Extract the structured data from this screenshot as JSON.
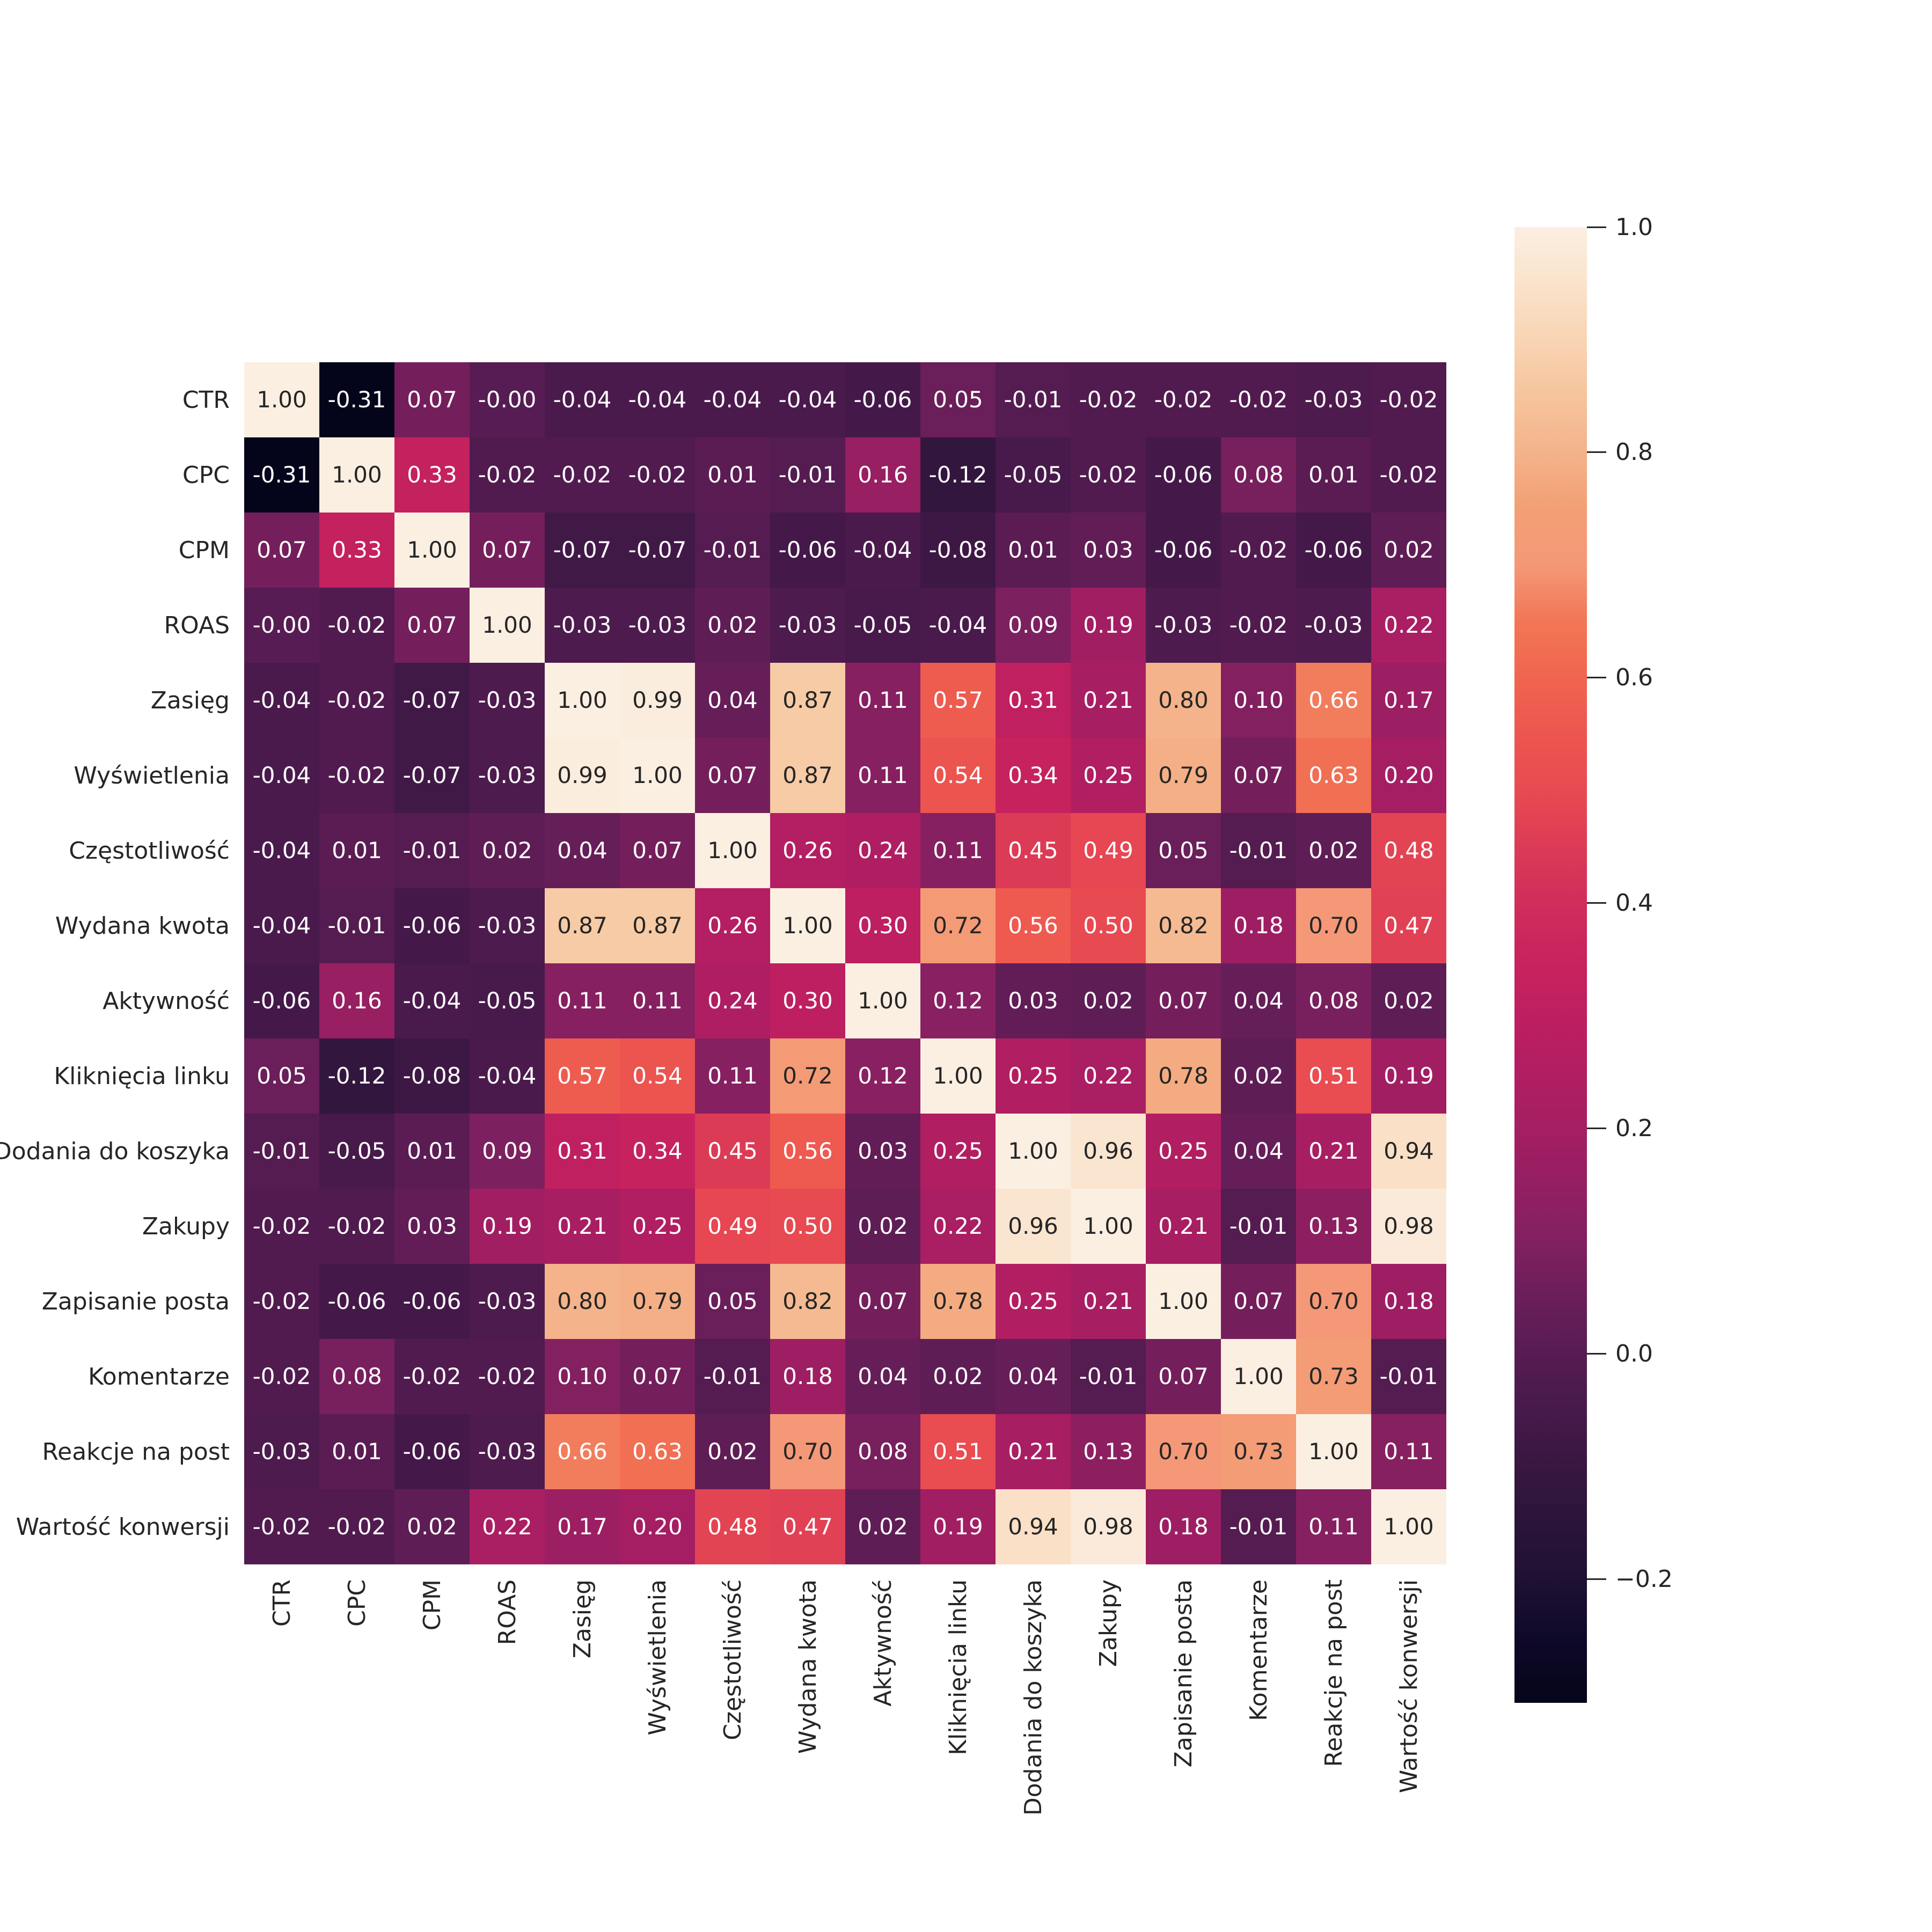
{
  "figure": {
    "background": "#ffffff"
  },
  "chart_data": {
    "type": "heatmap",
    "description": "Correlation matrix heatmap with Polish ad-metric labels, seaborn rocket colormap, annotated with two-decimal correlation values",
    "labels": [
      "CTR",
      "CPC",
      "CPM",
      "ROAS",
      "Zasięg",
      "Wyświetlenia",
      "Częstotliwość",
      "Wydana kwota",
      "Aktywność",
      "Kliknięcia linku",
      "Dodania do koszyka",
      "Zakupy",
      "Zapisanie posta",
      "Komentarze",
      "Reakcje na post",
      "Wartość konwersji"
    ],
    "matrix": [
      [
        "1.00",
        "-0.31",
        "0.07",
        "-0.00",
        "-0.04",
        "-0.04",
        "-0.04",
        "-0.04",
        "-0.06",
        "0.05",
        "-0.01",
        "-0.02",
        "-0.02",
        "-0.02",
        "-0.03",
        "-0.02"
      ],
      [
        "-0.31",
        "1.00",
        "0.33",
        "-0.02",
        "-0.02",
        "-0.02",
        "0.01",
        "-0.01",
        "0.16",
        "-0.12",
        "-0.05",
        "-0.02",
        "-0.06",
        "0.08",
        "0.01",
        "-0.02"
      ],
      [
        "0.07",
        "0.33",
        "1.00",
        "0.07",
        "-0.07",
        "-0.07",
        "-0.01",
        "-0.06",
        "-0.04",
        "-0.08",
        "0.01",
        "0.03",
        "-0.06",
        "-0.02",
        "-0.06",
        "0.02"
      ],
      [
        "-0.00",
        "-0.02",
        "0.07",
        "1.00",
        "-0.03",
        "-0.03",
        "0.02",
        "-0.03",
        "-0.05",
        "-0.04",
        "0.09",
        "0.19",
        "-0.03",
        "-0.02",
        "-0.03",
        "0.22"
      ],
      [
        "-0.04",
        "-0.02",
        "-0.07",
        "-0.03",
        "1.00",
        "0.99",
        "0.04",
        "0.87",
        "0.11",
        "0.57",
        "0.31",
        "0.21",
        "0.80",
        "0.10",
        "0.66",
        "0.17"
      ],
      [
        "-0.04",
        "-0.02",
        "-0.07",
        "-0.03",
        "0.99",
        "1.00",
        "0.07",
        "0.87",
        "0.11",
        "0.54",
        "0.34",
        "0.25",
        "0.79",
        "0.07",
        "0.63",
        "0.20"
      ],
      [
        "-0.04",
        "0.01",
        "-0.01",
        "0.02",
        "0.04",
        "0.07",
        "1.00",
        "0.26",
        "0.24",
        "0.11",
        "0.45",
        "0.49",
        "0.05",
        "-0.01",
        "0.02",
        "0.48"
      ],
      [
        "-0.04",
        "-0.01",
        "-0.06",
        "-0.03",
        "0.87",
        "0.87",
        "0.26",
        "1.00",
        "0.30",
        "0.72",
        "0.56",
        "0.50",
        "0.82",
        "0.18",
        "0.70",
        "0.47"
      ],
      [
        "-0.06",
        "0.16",
        "-0.04",
        "-0.05",
        "0.11",
        "0.11",
        "0.24",
        "0.30",
        "1.00",
        "0.12",
        "0.03",
        "0.02",
        "0.07",
        "0.04",
        "0.08",
        "0.02"
      ],
      [
        "0.05",
        "-0.12",
        "-0.08",
        "-0.04",
        "0.57",
        "0.54",
        "0.11",
        "0.72",
        "0.12",
        "1.00",
        "0.25",
        "0.22",
        "0.78",
        "0.02",
        "0.51",
        "0.19"
      ],
      [
        "-0.01",
        "-0.05",
        "0.01",
        "0.09",
        "0.31",
        "0.34",
        "0.45",
        "0.56",
        "0.03",
        "0.25",
        "1.00",
        "0.96",
        "0.25",
        "0.04",
        "0.21",
        "0.94"
      ],
      [
        "-0.02",
        "-0.02",
        "0.03",
        "0.19",
        "0.21",
        "0.25",
        "0.49",
        "0.50",
        "0.02",
        "0.22",
        "0.96",
        "1.00",
        "0.21",
        "-0.01",
        "0.13",
        "0.98"
      ],
      [
        "-0.02",
        "-0.06",
        "-0.06",
        "-0.03",
        "0.80",
        "0.79",
        "0.05",
        "0.82",
        "0.07",
        "0.78",
        "0.25",
        "0.21",
        "1.00",
        "0.07",
        "0.70",
        "0.18"
      ],
      [
        "-0.02",
        "0.08",
        "-0.02",
        "-0.02",
        "0.10",
        "0.07",
        "-0.01",
        "0.18",
        "0.04",
        "0.02",
        "0.04",
        "-0.01",
        "0.07",
        "1.00",
        "0.73",
        "-0.01"
      ],
      [
        "-0.03",
        "0.01",
        "-0.06",
        "-0.03",
        "0.66",
        "0.63",
        "0.02",
        "0.70",
        "0.08",
        "0.51",
        "0.21",
        "0.13",
        "0.70",
        "0.73",
        "1.00",
        "0.11"
      ],
      [
        "-0.02",
        "-0.02",
        "0.02",
        "0.22",
        "0.17",
        "0.20",
        "0.48",
        "0.47",
        "0.02",
        "0.19",
        "0.94",
        "0.98",
        "0.18",
        "-0.01",
        "0.11",
        "1.00"
      ]
    ],
    "vmin": -0.31,
    "vmax": 1.0,
    "colormap_name": "rocket",
    "colormap_anchors": [
      {
        "v": -0.31,
        "c": "#04051A"
      },
      {
        "v": -0.25,
        "c": "#10092A"
      },
      {
        "v": -0.2,
        "c": "#1F1133"
      },
      {
        "v": -0.15,
        "c": "#2B143A"
      },
      {
        "v": -0.1,
        "c": "#381740"
      },
      {
        "v": -0.05,
        "c": "#471A4B"
      },
      {
        "v": 0.0,
        "c": "#571C53"
      },
      {
        "v": 0.05,
        "c": "#6A1E5A"
      },
      {
        "v": 0.1,
        "c": "#822060"
      },
      {
        "v": 0.15,
        "c": "#941F62"
      },
      {
        "v": 0.2,
        "c": "#A51E63"
      },
      {
        "v": 0.25,
        "c": "#B21E62"
      },
      {
        "v": 0.3,
        "c": "#BE1F60"
      },
      {
        "v": 0.35,
        "c": "#C8235E"
      },
      {
        "v": 0.4,
        "c": "#D02E5B"
      },
      {
        "v": 0.45,
        "c": "#DC3B56"
      },
      {
        "v": 0.5,
        "c": "#E84A51"
      },
      {
        "v": 0.55,
        "c": "#ED5650"
      },
      {
        "v": 0.6,
        "c": "#F0654F"
      },
      {
        "v": 0.65,
        "c": "#F27656"
      },
      {
        "v": 0.7,
        "c": "#F49878"
      },
      {
        "v": 0.75,
        "c": "#F39F74"
      },
      {
        "v": 0.8,
        "c": "#F4B38A"
      },
      {
        "v": 0.85,
        "c": "#F6C49C"
      },
      {
        "v": 0.9,
        "c": "#F8D5B4"
      },
      {
        "v": 0.95,
        "c": "#FAE3CB"
      },
      {
        "v": 1.0,
        "c": "#FBEFE2"
      }
    ],
    "colorbar_ticks": [
      {
        "label": "1.0",
        "value": 1.0
      },
      {
        "label": "0.8",
        "value": 0.8
      },
      {
        "label": "0.6",
        "value": 0.6
      },
      {
        "label": "0.4",
        "value": 0.4
      },
      {
        "label": "0.2",
        "value": 0.2
      },
      {
        "label": "0.0",
        "value": 0.0
      },
      {
        "label": "−0.2",
        "value": -0.2
      }
    ],
    "annot_fmt": ".2f",
    "annot_dark_color": "#262626",
    "annot_light_color": "#ffffff",
    "legend_position": "right",
    "grid": false
  }
}
